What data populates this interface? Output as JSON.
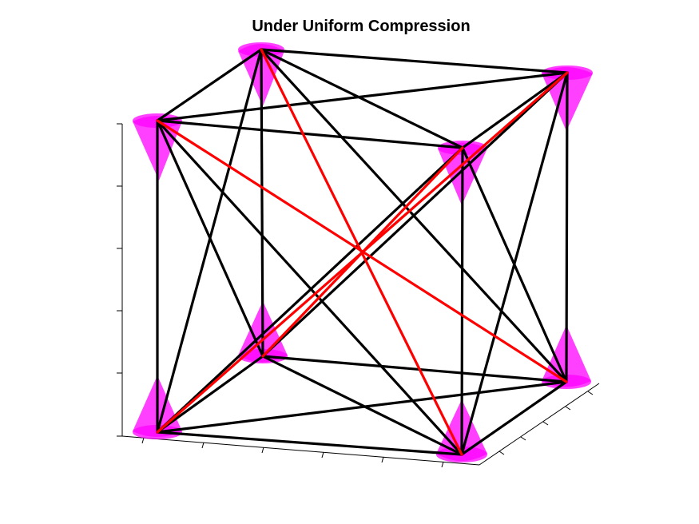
{
  "figure": {
    "title": "Under Uniform Compression"
  },
  "colors": {
    "strut": "#000000",
    "cable": "#ff0000",
    "cone": "#ff00ff",
    "background": "#ffffff"
  },
  "structure": {
    "type": "tensegrity-cube",
    "nodes": 8,
    "members": {
      "black": 24,
      "red": 4
    }
  }
}
